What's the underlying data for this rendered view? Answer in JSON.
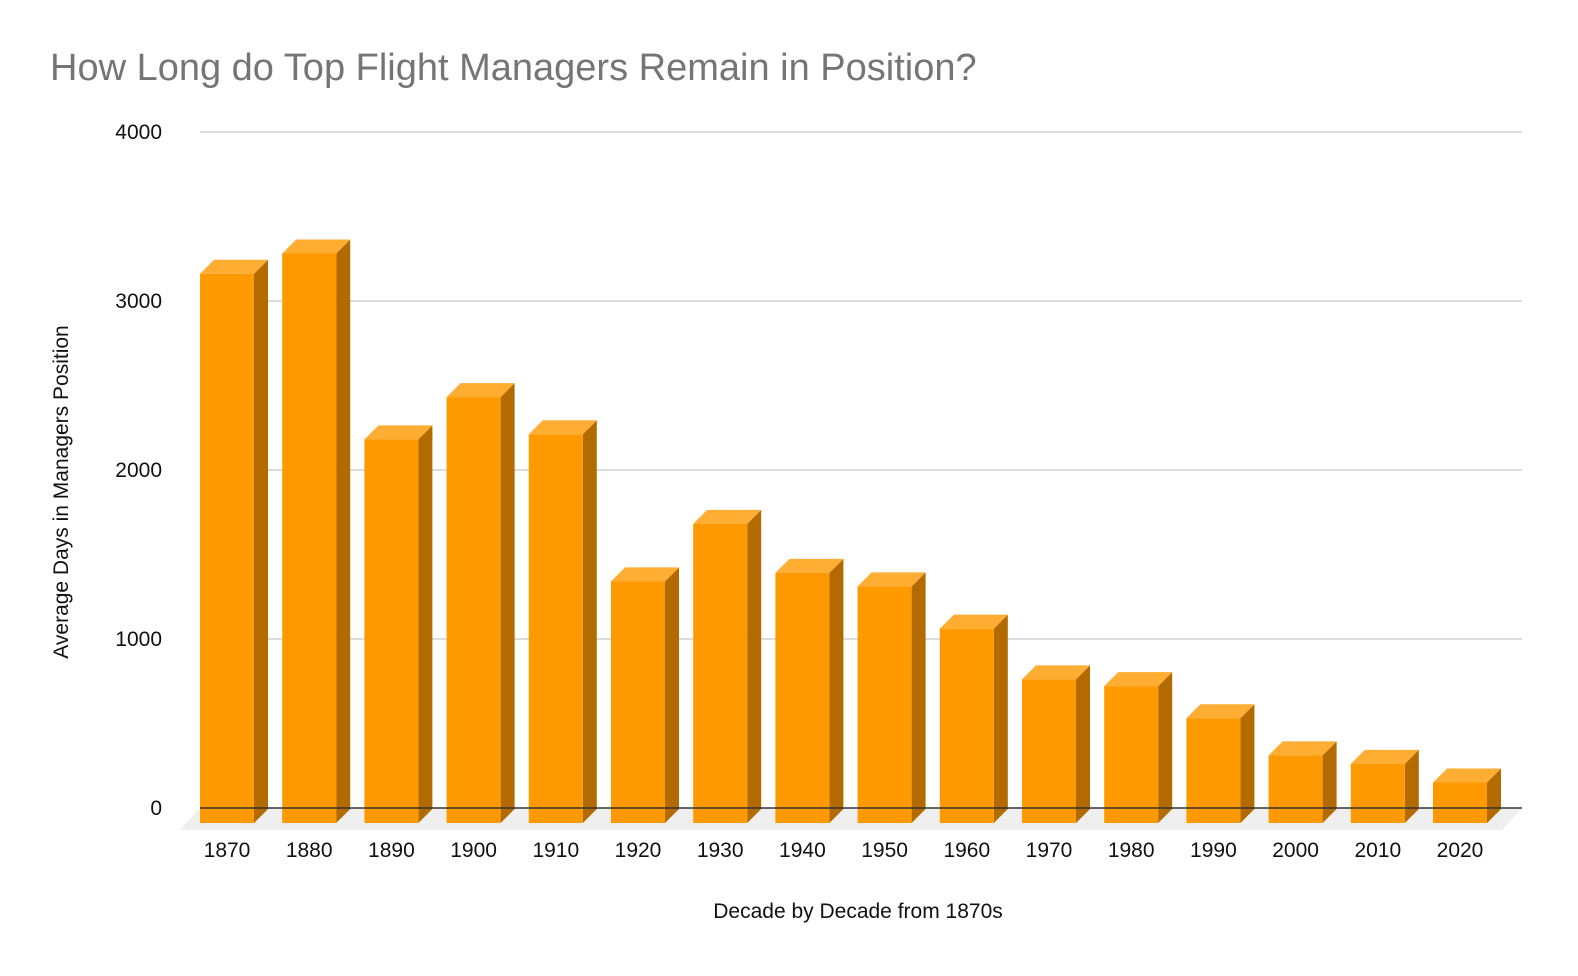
{
  "chart_data": {
    "type": "bar",
    "style": "3d",
    "title": "How Long do Top Flight Managers Remain in Position?",
    "xlabel": "Decade by Decade from 1870s",
    "ylabel": "Average Days in Managers Position",
    "categories": [
      "1870",
      "1880",
      "1890",
      "1900",
      "1910",
      "1920",
      "1930",
      "1940",
      "1950",
      "1960",
      "1970",
      "1980",
      "1990",
      "2000",
      "2010",
      "2020"
    ],
    "values": [
      3250,
      3370,
      2270,
      2520,
      2300,
      1430,
      1770,
      1480,
      1400,
      1150,
      850,
      810,
      620,
      400,
      350,
      240
    ],
    "ylim": [
      0,
      4000
    ],
    "yticks": [
      "0",
      "1000",
      "2000",
      "3000",
      "4000"
    ],
    "grid": true,
    "legend": "none",
    "colors": {
      "bar_front": "#FF9900",
      "bar_top": "#FFAD33",
      "bar_side": "#B36B00",
      "floor": "#EFEFEF"
    }
  }
}
